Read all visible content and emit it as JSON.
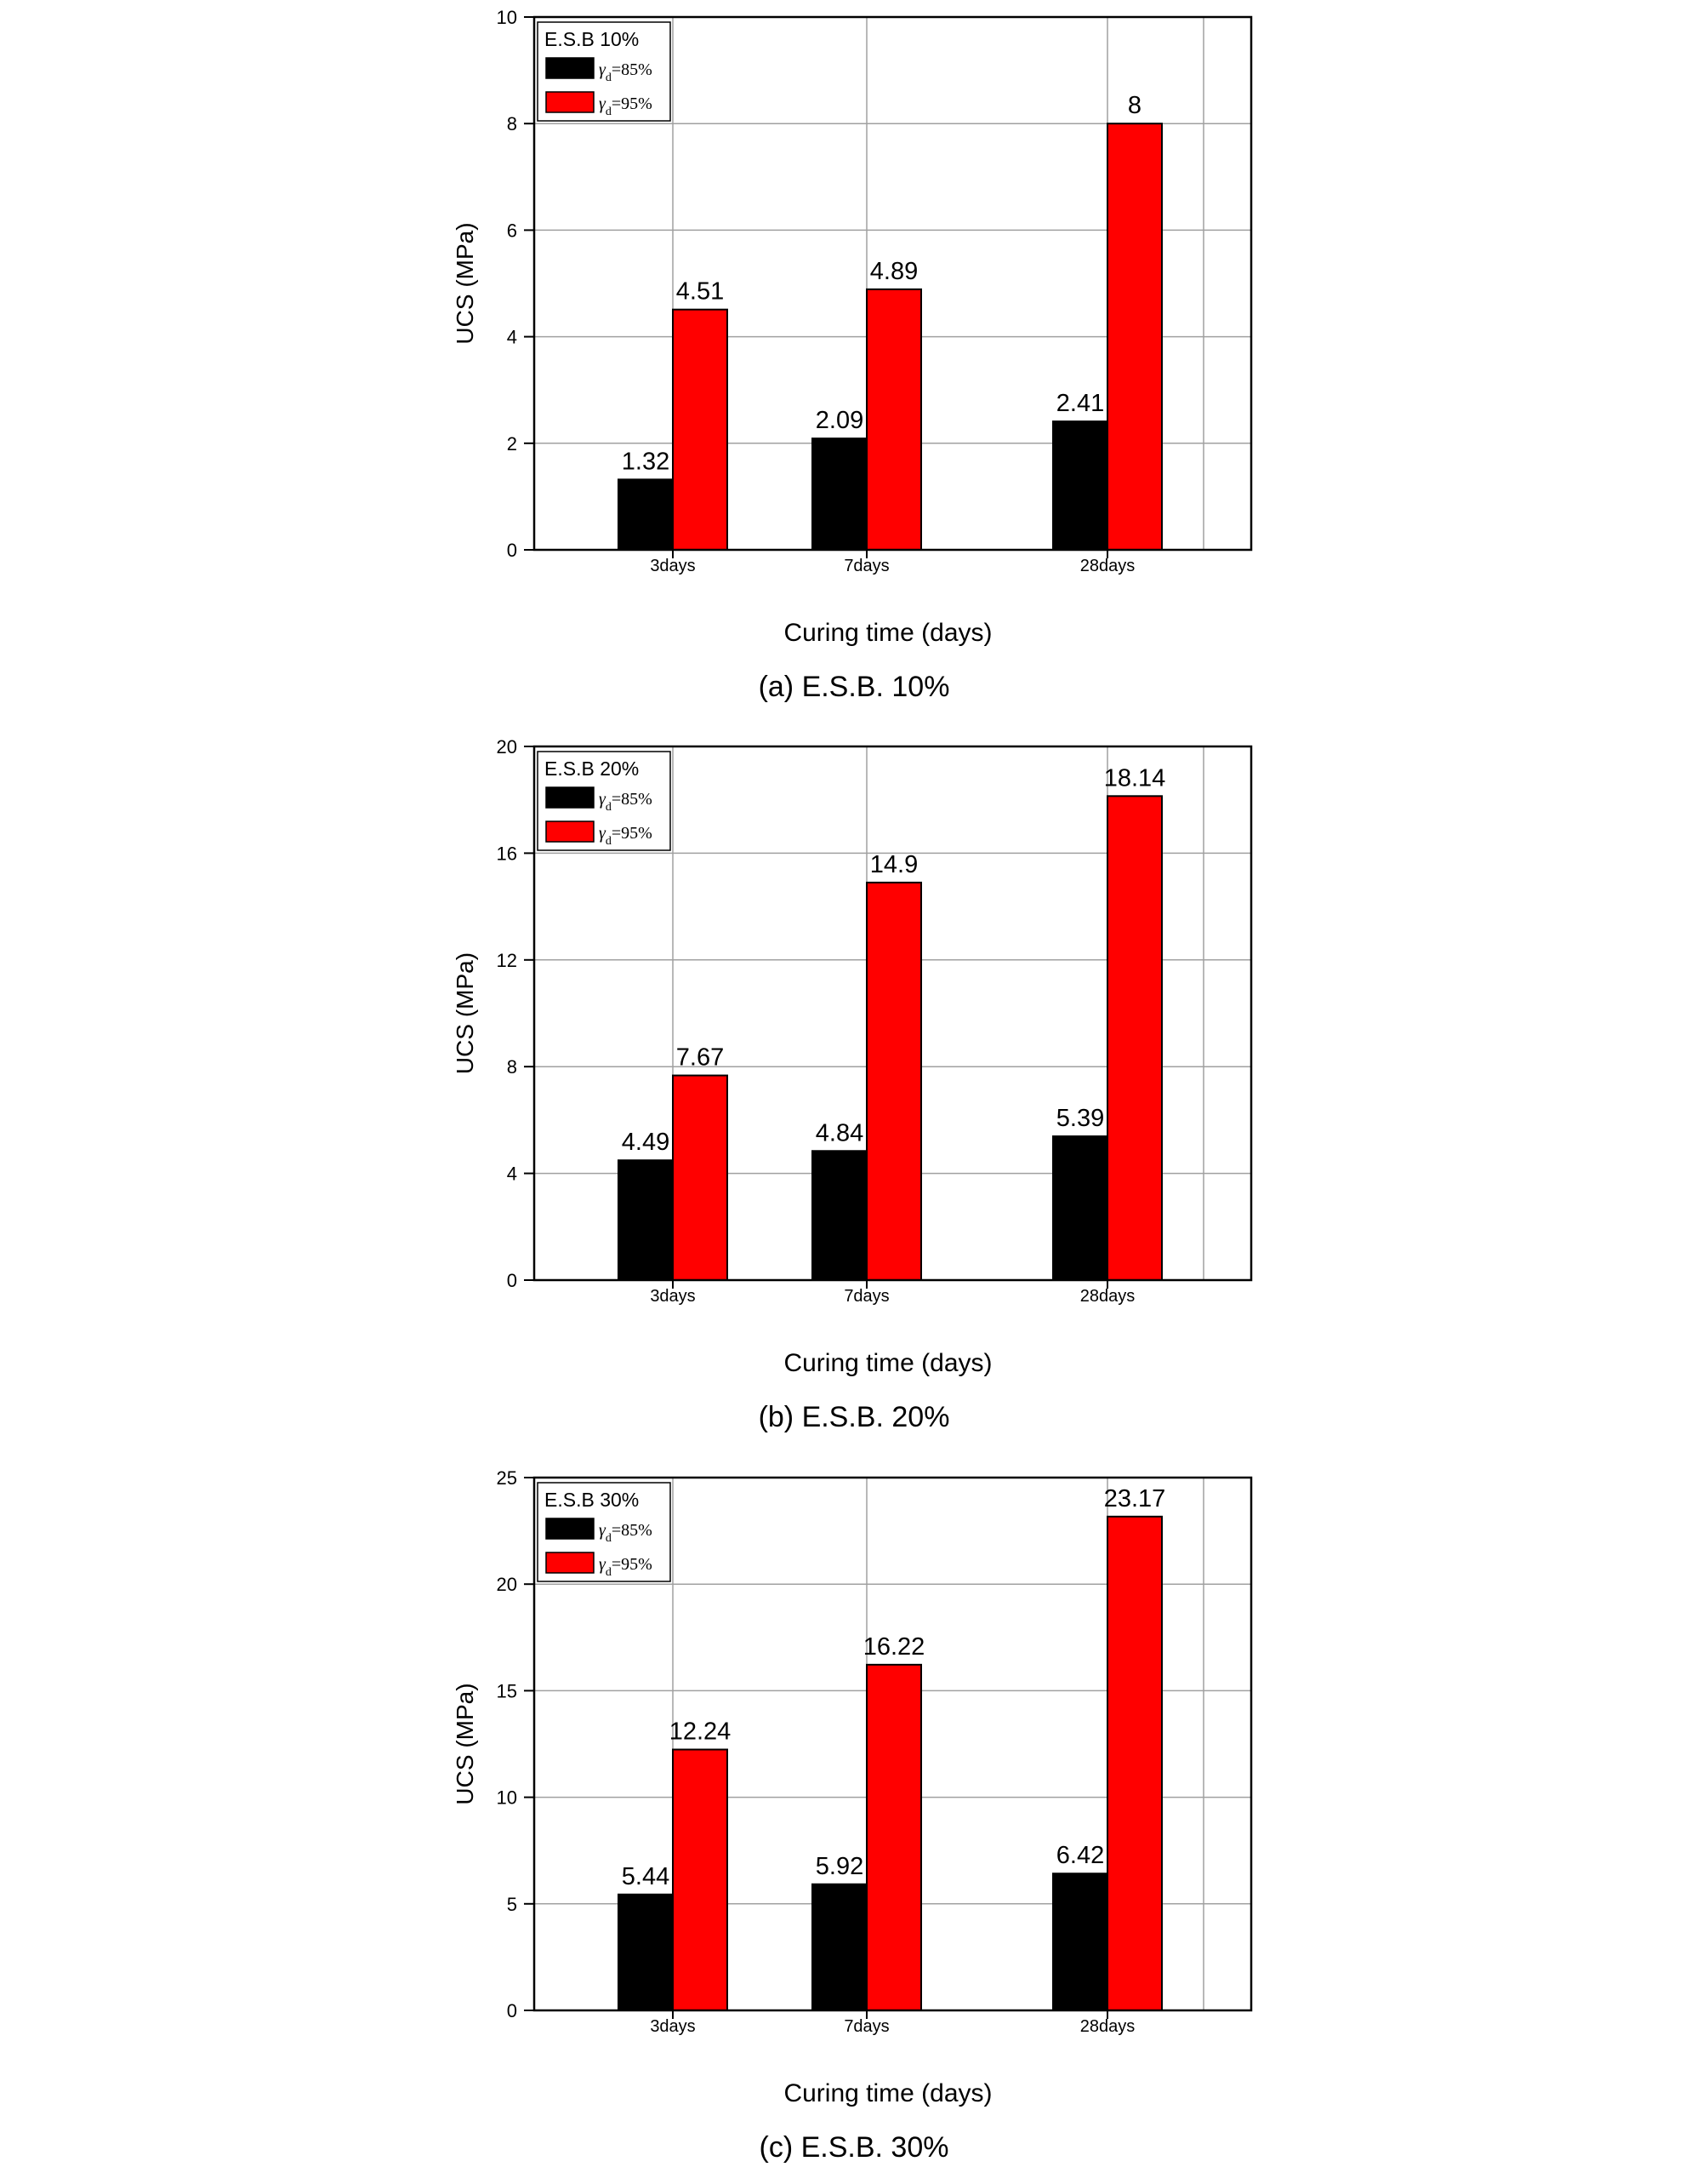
{
  "chart_data": [
    {
      "type": "bar",
      "legend_title": "E.S.B 10%",
      "categories": [
        "3days",
        "7days",
        "28days"
      ],
      "series": [
        {
          "name": "γd=85%",
          "symbol": "γ",
          "subscript": "d",
          "suffix": "=85%",
          "color": "#000000",
          "values": [
            1.32,
            2.09,
            2.41
          ],
          "labels": [
            "1.32",
            "2.09",
            "2.41"
          ]
        },
        {
          "name": "γd=95%",
          "symbol": "γ",
          "subscript": "d",
          "suffix": "=95%",
          "color": "#ff0000",
          "values": [
            4.51,
            4.89,
            8
          ],
          "labels": [
            "4.51",
            "4.89",
            "8"
          ]
        }
      ],
      "ylim": [
        0,
        10
      ],
      "yticks": [
        "0",
        "2",
        "4",
        "6",
        "8",
        "10"
      ],
      "xlabel": "Curing time (days)",
      "ylabel": "UCS (MPa)",
      "caption": "(a) E.S.B. 10%",
      "grid": true,
      "legend_position": "top-left"
    },
    {
      "type": "bar",
      "legend_title": "E.S.B 20%",
      "categories": [
        "3days",
        "7days",
        "28days"
      ],
      "series": [
        {
          "name": "γd=85%",
          "symbol": "γ",
          "subscript": "d",
          "suffix": "=85%",
          "color": "#000000",
          "values": [
            4.49,
            4.84,
            5.39
          ],
          "labels": [
            "4.49",
            "4.84",
            "5.39"
          ]
        },
        {
          "name": "γd=95%",
          "symbol": "γ",
          "subscript": "d",
          "suffix": "=95%",
          "color": "#ff0000",
          "values": [
            7.67,
            14.9,
            18.14
          ],
          "labels": [
            "7.67",
            "14.9",
            "18.14"
          ]
        }
      ],
      "ylim": [
        0,
        20
      ],
      "yticks": [
        "0",
        "4",
        "8",
        "12",
        "16",
        "20"
      ],
      "xlabel": "Curing time (days)",
      "ylabel": "UCS (MPa)",
      "caption": "(b) E.S.B. 20%",
      "grid": true,
      "legend_position": "top-left"
    },
    {
      "type": "bar",
      "legend_title": "E.S.B 30%",
      "categories": [
        "3days",
        "7days",
        "28days"
      ],
      "series": [
        {
          "name": "γd=85%",
          "symbol": "γ",
          "subscript": "d",
          "suffix": "=85%",
          "color": "#000000",
          "values": [
            5.44,
            5.92,
            6.42
          ],
          "labels": [
            "5.44",
            "5.92",
            "6.42"
          ]
        },
        {
          "name": "γd=95%",
          "symbol": "γ",
          "subscript": "d",
          "suffix": "=95%",
          "color": "#ff0000",
          "values": [
            12.24,
            16.22,
            23.17
          ],
          "labels": [
            "12.24",
            "16.22",
            "23.17"
          ]
        }
      ],
      "ylim": [
        0,
        25
      ],
      "yticks": [
        "0",
        "5",
        "10",
        "15",
        "20",
        "25"
      ],
      "xlabel": "Curing time (days)",
      "ylabel": "UCS (MPa)",
      "caption": "(c) E.S.B. 30%",
      "grid": true,
      "legend_position": "top-left"
    }
  ]
}
